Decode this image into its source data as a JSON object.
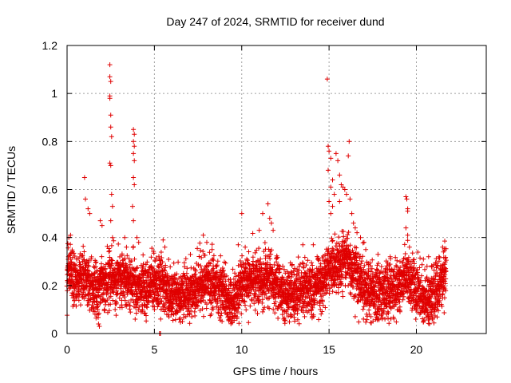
{
  "chart_data": {
    "type": "scatter",
    "title": "Day 247 of 2024, SRMTID for receiver dund",
    "xlabel": "GPS time / hours",
    "ylabel": "SRMTID / TECUs",
    "xlim": [
      0,
      24
    ],
    "ylim": [
      0,
      1.2
    ],
    "xticks": [
      0,
      5,
      10,
      15,
      20
    ],
    "yticks": [
      0,
      0.2,
      0.4,
      0.6,
      0.8,
      1,
      1.2
    ],
    "xtick_labels": [
      "0",
      "5",
      "10",
      "15",
      "20"
    ],
    "ytick_labels": [
      "0",
      "0.2",
      "0.4",
      "0.6",
      "0.8",
      "1",
      "1.2"
    ],
    "grid": true,
    "marker": "+",
    "color": "#e00000",
    "sampling_interval_hours": 0.01,
    "data_range_hours": [
      0,
      21.7
    ],
    "baseline_points": [
      [
        0,
        0.27
      ],
      [
        0.5,
        0.22
      ],
      [
        1.0,
        0.25
      ],
      [
        1.5,
        0.18
      ],
      [
        2.0,
        0.2
      ],
      [
        2.5,
        0.24
      ],
      [
        3.0,
        0.23
      ],
      [
        3.5,
        0.22
      ],
      [
        4.0,
        0.2
      ],
      [
        4.5,
        0.19
      ],
      [
        5.0,
        0.22
      ],
      [
        5.5,
        0.2
      ],
      [
        6.0,
        0.17
      ],
      [
        6.5,
        0.16
      ],
      [
        7.0,
        0.18
      ],
      [
        7.5,
        0.2
      ],
      [
        8.0,
        0.22
      ],
      [
        8.5,
        0.2
      ],
      [
        9.0,
        0.17
      ],
      [
        9.5,
        0.13
      ],
      [
        10.0,
        0.2
      ],
      [
        10.5,
        0.22
      ],
      [
        11.0,
        0.22
      ],
      [
        11.5,
        0.24
      ],
      [
        12.0,
        0.2
      ],
      [
        12.5,
        0.16
      ],
      [
        13.0,
        0.17
      ],
      [
        13.5,
        0.19
      ],
      [
        14.0,
        0.18
      ],
      [
        14.5,
        0.2
      ],
      [
        15.0,
        0.27
      ],
      [
        15.5,
        0.28
      ],
      [
        16.0,
        0.3
      ],
      [
        16.5,
        0.25
      ],
      [
        17.0,
        0.2
      ],
      [
        17.5,
        0.16
      ],
      [
        18.0,
        0.17
      ],
      [
        18.5,
        0.19
      ],
      [
        19.0,
        0.2
      ],
      [
        19.5,
        0.24
      ],
      [
        20.0,
        0.17
      ],
      [
        20.5,
        0.14
      ],
      [
        21.0,
        0.16
      ],
      [
        21.5,
        0.22
      ],
      [
        21.7,
        0.28
      ]
    ],
    "peak_points": [
      [
        0.1,
        0.4
      ],
      [
        0.2,
        0.41
      ],
      [
        0.3,
        0.34
      ],
      [
        1.0,
        0.65
      ],
      [
        1.05,
        0.56
      ],
      [
        1.2,
        0.52
      ],
      [
        1.3,
        0.5
      ],
      [
        1.8,
        0.04
      ],
      [
        1.85,
        0.03
      ],
      [
        1.9,
        0.47
      ],
      [
        2.0,
        0.45
      ],
      [
        2.45,
        1.12
      ],
      [
        2.45,
        1.07
      ],
      [
        2.5,
        1.05
      ],
      [
        2.45,
        0.99
      ],
      [
        2.45,
        0.98
      ],
      [
        2.5,
        0.91
      ],
      [
        2.5,
        0.86
      ],
      [
        2.55,
        0.82
      ],
      [
        2.45,
        0.71
      ],
      [
        2.5,
        0.7
      ],
      [
        2.55,
        0.58
      ],
      [
        2.6,
        0.53
      ],
      [
        2.5,
        0.47
      ],
      [
        2.6,
        0.4
      ],
      [
        3.3,
        0.4
      ],
      [
        3.4,
        0.36
      ],
      [
        3.8,
        0.85
      ],
      [
        3.85,
        0.83
      ],
      [
        3.8,
        0.8
      ],
      [
        3.85,
        0.78
      ],
      [
        3.8,
        0.75
      ],
      [
        3.85,
        0.72
      ],
      [
        3.8,
        0.65
      ],
      [
        3.85,
        0.62
      ],
      [
        3.75,
        0.53
      ],
      [
        3.8,
        0.47
      ],
      [
        4.0,
        0.4
      ],
      [
        4.1,
        0.38
      ],
      [
        5.5,
        0.39
      ],
      [
        5.6,
        0.36
      ],
      [
        7.8,
        0.41
      ],
      [
        8.0,
        0.38
      ],
      [
        8.3,
        0.35
      ],
      [
        9.8,
        0.37
      ],
      [
        10.0,
        0.5
      ],
      [
        10.2,
        0.36
      ],
      [
        11.0,
        0.43
      ],
      [
        11.2,
        0.5
      ],
      [
        11.5,
        0.54
      ],
      [
        11.6,
        0.48
      ],
      [
        11.7,
        0.46
      ],
      [
        11.8,
        0.43
      ],
      [
        13.5,
        0.37
      ],
      [
        14.1,
        0.37
      ],
      [
        14.9,
        1.06
      ],
      [
        14.95,
        0.78
      ],
      [
        15.0,
        0.76
      ],
      [
        15.1,
        0.73
      ],
      [
        14.95,
        0.68
      ],
      [
        15.2,
        0.64
      ],
      [
        15.1,
        0.61
      ],
      [
        15.3,
        0.58
      ],
      [
        15.0,
        0.55
      ],
      [
        15.2,
        0.53
      ],
      [
        15.1,
        0.5
      ],
      [
        15.4,
        0.75
      ],
      [
        15.5,
        0.72
      ],
      [
        15.6,
        0.66
      ],
      [
        15.7,
        0.62
      ],
      [
        15.8,
        0.61
      ],
      [
        15.9,
        0.6
      ],
      [
        15.6,
        0.55
      ],
      [
        16.0,
        0.58
      ],
      [
        16.1,
        0.74
      ],
      [
        16.15,
        0.8
      ],
      [
        16.2,
        0.56
      ],
      [
        16.3,
        0.5
      ],
      [
        16.4,
        0.46
      ],
      [
        16.5,
        0.44
      ],
      [
        16.6,
        0.42
      ],
      [
        16.8,
        0.4
      ],
      [
        17.0,
        0.38
      ],
      [
        17.1,
        0.35
      ],
      [
        17.8,
        0.33
      ],
      [
        18.5,
        0.32
      ],
      [
        19.4,
        0.57
      ],
      [
        19.45,
        0.56
      ],
      [
        19.5,
        0.52
      ],
      [
        19.5,
        0.51
      ],
      [
        19.4,
        0.44
      ],
      [
        19.5,
        0.41
      ],
      [
        19.6,
        0.36
      ],
      [
        19.7,
        0.3
      ],
      [
        20.4,
        0.31
      ],
      [
        20.7,
        0.32
      ],
      [
        21.3,
        0.32
      ],
      [
        21.5,
        0.36
      ],
      [
        21.55,
        0.34
      ]
    ],
    "low_points": [
      [
        0.4,
        0.12
      ],
      [
        0.5,
        0.15
      ],
      [
        1.6,
        0.08
      ],
      [
        1.7,
        0.08
      ],
      [
        1.75,
        0.1
      ],
      [
        2.2,
        0.12
      ],
      [
        4.3,
        0.12
      ],
      [
        5.0,
        0.1
      ],
      [
        5.3,
        0.0
      ],
      [
        5.35,
        0.0
      ],
      [
        6.2,
        0.09
      ],
      [
        6.5,
        0.11
      ],
      [
        7.0,
        0.08
      ],
      [
        7.3,
        0.09
      ],
      [
        9.3,
        0.06
      ],
      [
        9.4,
        0.05
      ],
      [
        9.5,
        0.07
      ],
      [
        9.6,
        0.1
      ],
      [
        11.2,
        0.09
      ],
      [
        11.5,
        0.11
      ],
      [
        12.4,
        0.06
      ],
      [
        12.8,
        0.07
      ],
      [
        13.0,
        0.08
      ],
      [
        13.1,
        0.1
      ],
      [
        13.6,
        0.07
      ],
      [
        14.0,
        0.08
      ],
      [
        14.5,
        0.1
      ],
      [
        16.5,
        0.07
      ],
      [
        17.3,
        0.08
      ],
      [
        17.4,
        0.07
      ],
      [
        17.8,
        0.09
      ],
      [
        18.2,
        0.06
      ],
      [
        18.3,
        0.08
      ],
      [
        19.0,
        0.1
      ],
      [
        20.2,
        0.08
      ],
      [
        20.5,
        0.1
      ],
      [
        20.8,
        0.07
      ],
      [
        20.9,
        0.06
      ],
      [
        21.0,
        0.09
      ]
    ]
  }
}
